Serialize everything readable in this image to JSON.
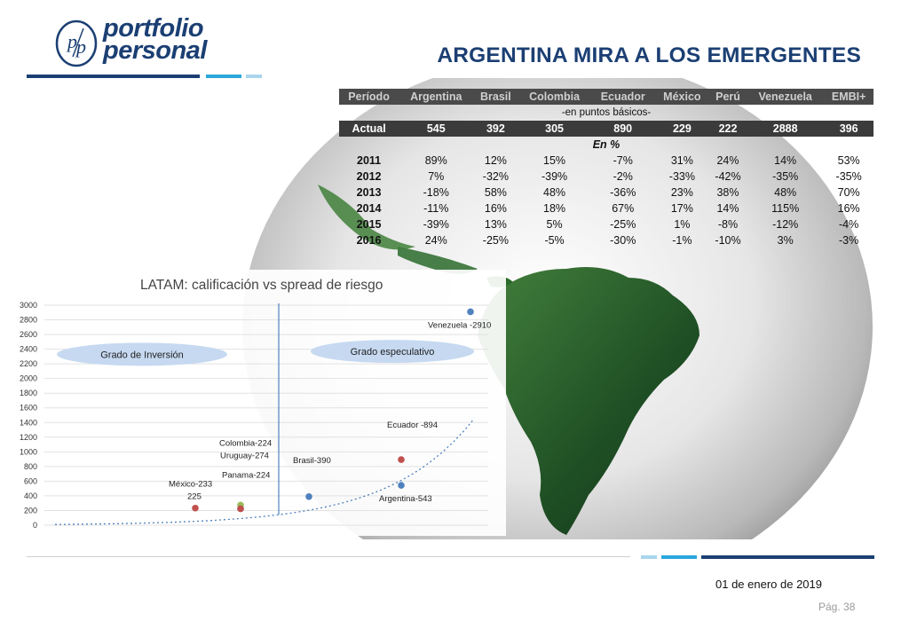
{
  "brand": {
    "line1": "portfolio",
    "line2": "personal"
  },
  "slide_title": "ARGENTINA MIRA A LOS EMERGENTES",
  "table": {
    "headers": [
      "Período",
      "Argentina",
      "Brasil",
      "Colombia",
      "Ecuador",
      "México",
      "Perú",
      "Venezuela",
      "EMBI+"
    ],
    "unit_note": "-en puntos básicos-",
    "actual": [
      "Actual",
      "545",
      "392",
      "305",
      "890",
      "229",
      "222",
      "2888",
      "396"
    ],
    "pct_note": "En %",
    "rows": [
      [
        "2011",
        "89%",
        "12%",
        "15%",
        "-7%",
        "31%",
        "24%",
        "14%",
        "53%"
      ],
      [
        "2012",
        "7%",
        "-32%",
        "-39%",
        "-2%",
        "-33%",
        "-42%",
        "-35%",
        "-35%"
      ],
      [
        "2013",
        "-18%",
        "58%",
        "48%",
        "-36%",
        "23%",
        "38%",
        "48%",
        "70%"
      ],
      [
        "2014",
        "-11%",
        "16%",
        "18%",
        "67%",
        "17%",
        "14%",
        "115%",
        "16%"
      ],
      [
        "2015",
        "-39%",
        "13%",
        "5%",
        "-25%",
        "1%",
        "-8%",
        "-12%",
        "-4%"
      ],
      [
        "2016",
        "24%",
        "-25%",
        "-5%",
        "-30%",
        "-1%",
        "-10%",
        "3%",
        "-3%"
      ]
    ]
  },
  "chart_data": {
    "type": "scatter",
    "title": "LATAM: calificación  vs spread de riesgo",
    "ylim": [
      0,
      3000
    ],
    "yticks": [
      0,
      200,
      400,
      600,
      800,
      1000,
      1200,
      1400,
      1600,
      1800,
      2000,
      2200,
      2400,
      2600,
      2800,
      3000
    ],
    "grid": true,
    "zones": [
      "Grado de Inversión",
      "Grado especulativo"
    ],
    "points": [
      {
        "label": "México-233",
        "value": 233,
        "color": "#c0504d"
      },
      {
        "label": "Colombia-224",
        "value": 224,
        "color": "#4bacc6"
      },
      {
        "label": "Uruguay-274",
        "value": 274,
        "color": "#9bbb59"
      },
      {
        "label": "Panama-224",
        "value": 224,
        "color": "#c0504d"
      },
      {
        "label": "Brasil-390",
        "value": 390,
        "color": "#4f81bd"
      },
      {
        "label": "Ecuador -894",
        "value": 894,
        "color": "#c0504d"
      },
      {
        "label": "Argentina-543",
        "value": 543,
        "color": "#4f81bd"
      },
      {
        "label": "Venezuela -2910",
        "value": 2910,
        "color": "#4f81bd"
      }
    ],
    "extra_label": "225"
  },
  "footer": {
    "date": "01 de enero de 2019",
    "page": "Pág. 38"
  },
  "colors": {
    "navy": "#1b3f73",
    "light_blue": "#8ec9e6",
    "mid_blue": "#2aa7dc"
  }
}
